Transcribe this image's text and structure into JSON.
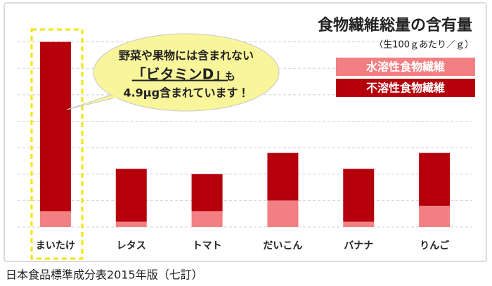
{
  "chart_data": {
    "type": "stacked-bar",
    "title": "食物繊維総量の含有量",
    "subtitle": "（生100ｇあたり／ｇ）",
    "categories": [
      "まいたけ",
      "レタス",
      "トマト",
      "だいこん",
      "バナナ",
      "りんご"
    ],
    "series": [
      {
        "name": "水溶性食物繊維",
        "color": "#f27f82",
        "values": [
          0.3,
          0.1,
          0.3,
          0.5,
          0.1,
          0.4
        ]
      },
      {
        "name": "不溶性食物繊維",
        "color": "#b5000c",
        "values": [
          3.2,
          1.0,
          0.7,
          0.9,
          1.0,
          1.0
        ]
      }
    ],
    "ylim": [
      0,
      4.0
    ],
    "yticks": [
      0,
      0.5,
      1,
      1.5,
      2,
      2.5,
      3,
      3.5
    ],
    "grid": true,
    "annotation": {
      "line1": "野菜や果物には含まれない",
      "line2": "「ビタミンD」",
      "line2_suffix": "も",
      "line3": "4.9μg含まれています！"
    },
    "source": "日本食品標準成分表2015年版（七訂）"
  }
}
